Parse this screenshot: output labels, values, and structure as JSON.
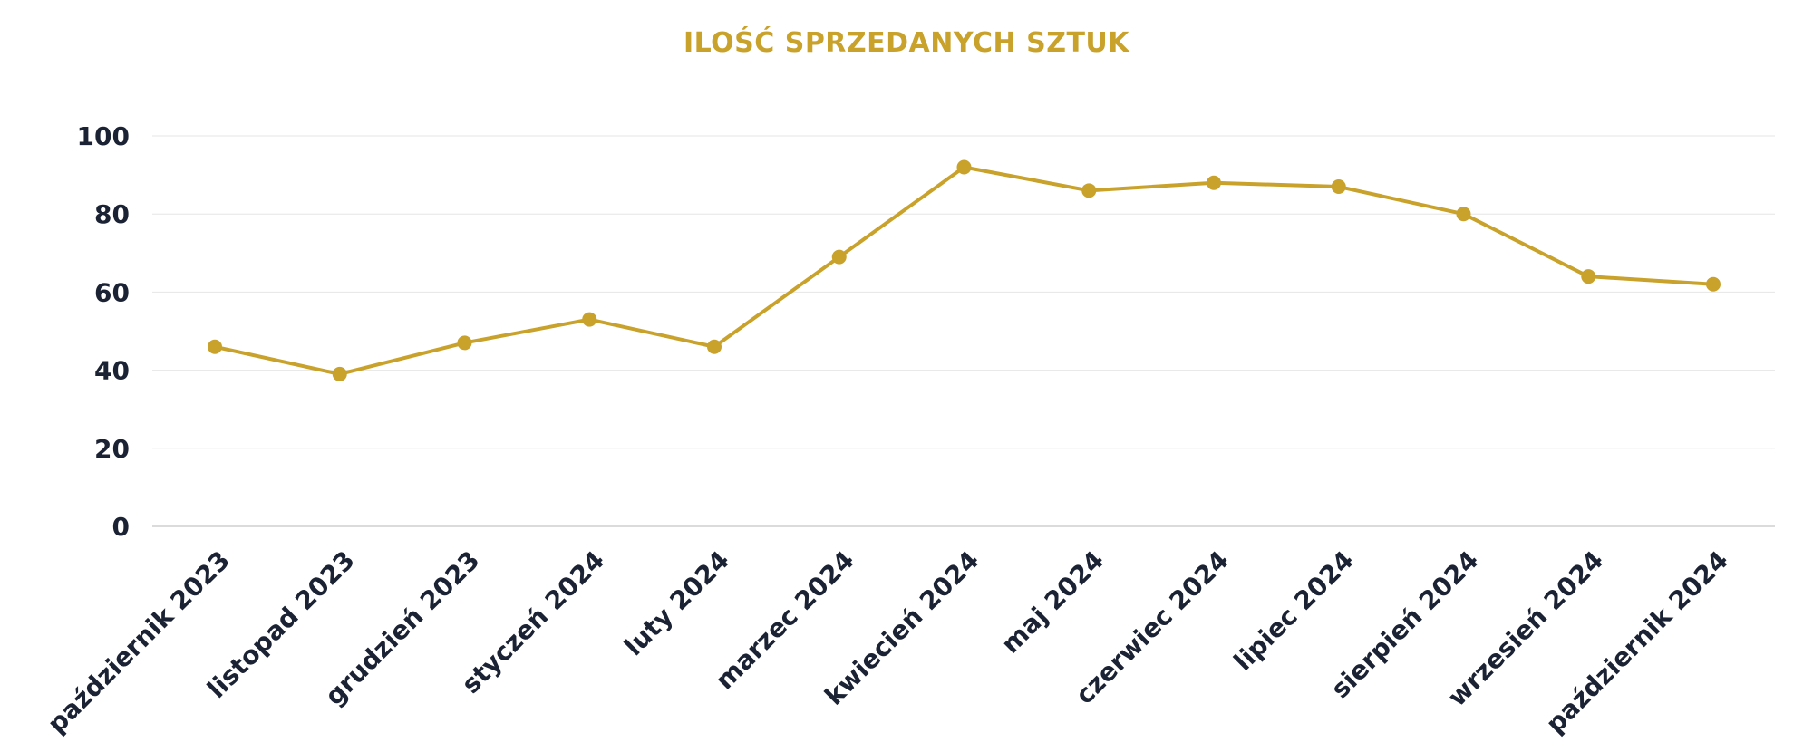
{
  "chart_data": {
    "type": "line",
    "title": "ILOŚĆ SPRZEDANYCH SZTUK",
    "xlabel": "",
    "ylabel": "",
    "ylim": [
      0,
      100
    ],
    "yticks": [
      "0",
      "20",
      "40",
      "60",
      "80",
      "100"
    ],
    "grid": true,
    "legend": "none",
    "categories": [
      "październik 2023",
      "listopad 2023",
      "grudzień 2023",
      "styczeń 2024",
      "luty 2024",
      "marzec 2024",
      "kwiecień 2024",
      "maj 2024",
      "czerwiec 2024",
      "lipiec 2024",
      "sierpień 2024",
      "wrzesień 2024",
      "październik 2024"
    ],
    "series": [
      {
        "values": [
          46,
          39,
          47,
          53,
          46,
          69,
          92,
          86,
          88,
          87,
          80,
          64,
          62
        ],
        "color": "#c9a22b"
      }
    ]
  },
  "colors": {
    "accent": "#c9a22b",
    "text": "#1b2233",
    "grid": "#e6e6e6",
    "axis": "#cfcfcf"
  }
}
